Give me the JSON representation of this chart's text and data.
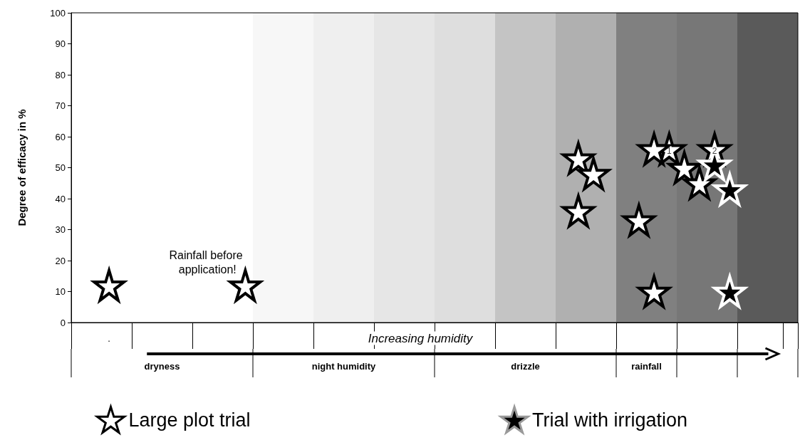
{
  "chart_data": {
    "type": "scatter",
    "ylabel": "Degree of efficacy in %",
    "categories": [
      null,
      null,
      ".",
      null,
      null,
      null,
      null,
      null,
      null,
      null,
      null,
      null,
      null,
      null,
      null,
      null,
      null,
      null,
      null,
      null,
      null,
      null,
      null,
      null,
      null,
      null,
      null,
      null,
      null,
      null,
      null,
      null,
      null,
      null,
      null,
      null,
      null,
      null,
      null,
      null,
      null,
      null,
      null,
      null,
      null,
      null,
      null,
      null
    ],
    "ylim": [
      0,
      100
    ],
    "yticks": [
      0,
      10,
      20,
      30,
      40,
      50,
      60,
      70,
      80,
      90,
      100
    ],
    "grid": false,
    "legend": "bottom",
    "marker": "star",
    "series": [
      {
        "name": "Large plot trial",
        "color": "#ffffff",
        "values": [
          null,
          null,
          12,
          null,
          null,
          null,
          null,
          null,
          null,
          null,
          null,
          12,
          null,
          null,
          null,
          null,
          null,
          null,
          null,
          null,
          null,
          null,
          null,
          null,
          null,
          null,
          null,
          null,
          null,
          null,
          null,
          null,
          null,
          53,
          48,
          null,
          null,
          33,
          10,
          56,
          50,
          45,
          56,
          null,
          null,
          null,
          null,
          null
        ]
      },
      {
        "color": "#ffffff",
        "values": [
          null,
          null,
          null,
          null,
          null,
          null,
          null,
          null,
          null,
          null,
          null,
          null,
          null,
          null,
          null,
          null,
          null,
          null,
          null,
          null,
          null,
          null,
          null,
          null,
          null,
          null,
          null,
          null,
          null,
          null,
          null,
          null,
          null,
          36,
          null,
          null,
          null,
          null,
          56,
          null,
          null,
          null,
          null,
          null,
          null,
          null,
          null,
          null
        ]
      },
      {
        "name": "Trial with irrigation",
        "color": "#000000",
        "values": [
          null,
          null,
          null,
          null,
          null,
          null,
          null,
          null,
          null,
          null,
          null,
          null,
          null,
          null,
          null,
          null,
          null,
          null,
          null,
          null,
          null,
          null,
          null,
          null,
          null,
          null,
          null,
          null,
          null,
          null,
          null,
          null,
          null,
          null,
          null,
          null,
          null,
          null,
          null,
          null,
          null,
          null,
          51,
          43,
          null,
          null,
          null,
          null
        ]
      },
      {
        "color": "#000000",
        "values": [
          null,
          null,
          null,
          null,
          null,
          null,
          null,
          null,
          null,
          null,
          null,
          null,
          null,
          null,
          null,
          null,
          null,
          null,
          null,
          null,
          null,
          null,
          null,
          null,
          null,
          null,
          null,
          null,
          null,
          null,
          null,
          null,
          null,
          null,
          null,
          null,
          null,
          null,
          null,
          null,
          null,
          null,
          null,
          10,
          null,
          null,
          null,
          null
        ]
      }
    ],
    "annotations": [
      "Rainfall before application!",
      "Increasing humidity",
      "dryness",
      "night humidity",
      "drizzle",
      "rainfall",
      {
        "text": "1",
        "y": 56
      },
      {
        "text": "2",
        "y": 56
      }
    ]
  }
}
